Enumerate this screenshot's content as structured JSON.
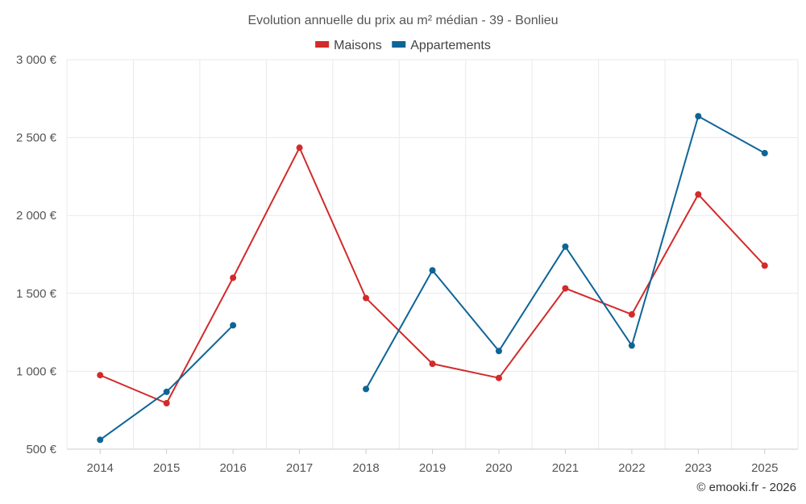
{
  "chart_data": {
    "type": "line",
    "title": "Evolution annuelle du prix au m² médian - 39 - Bonlieu",
    "categories": [
      "2014",
      "2015",
      "2016",
      "2017",
      "2018",
      "2019",
      "2020",
      "2021",
      "2022",
      "2023",
      "2025"
    ],
    "series": [
      {
        "name": "Maisons",
        "color": "#d32a2a",
        "values": [
          975,
          795,
          1600,
          2435,
          1470,
          1048,
          957,
          1532,
          1365,
          2135,
          1678
        ]
      },
      {
        "name": "Appartements",
        "color": "#0f6496",
        "values": [
          560,
          868,
          1295,
          null,
          886,
          1648,
          1130,
          1800,
          1165,
          2637,
          2400
        ]
      }
    ],
    "yticks": [
      "3 000 €",
      "2 500 €",
      "2 000 €",
      "1 500 €",
      "1 000 €",
      "500 €"
    ],
    "ylim": [
      500,
      3000
    ],
    "grid": true,
    "legend_position": "top-center"
  },
  "credit": "© emooki.fr - 2026"
}
